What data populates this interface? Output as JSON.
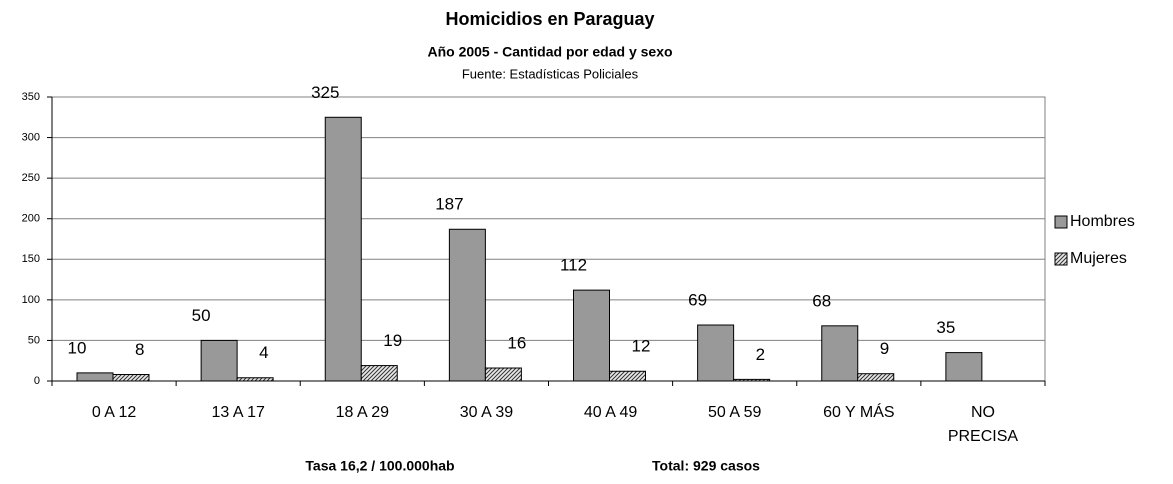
{
  "chart_data": {
    "type": "bar",
    "title": "Homicidios en Paraguay",
    "subtitle": "Año 2005 - Cantidad por edad y sexo",
    "source": "Fuente: Estadísticas Policiales",
    "annotations": [
      "Tasa 16,2 / 100.000hab",
      "Total: 929 casos"
    ],
    "categories": [
      "0 A 12",
      "13 A 17",
      "18 A 29",
      "30 A 39",
      "40 A 49",
      "50 A 59",
      "60  Y MÁS",
      "NO PRECISA"
    ],
    "series": [
      {
        "name": "Hombres",
        "color": "#999999",
        "values": [
          10,
          50,
          325,
          187,
          112,
          69,
          68,
          35
        ]
      },
      {
        "name": "Mujeres",
        "color": "#cccccc",
        "values": [
          8,
          4,
          19,
          16,
          12,
          2,
          9,
          null
        ]
      }
    ],
    "ylim": [
      0,
      350
    ],
    "yticks": [
      0,
      50,
      100,
      150,
      200,
      250,
      300,
      350
    ],
    "grid": true,
    "legend": "right"
  }
}
